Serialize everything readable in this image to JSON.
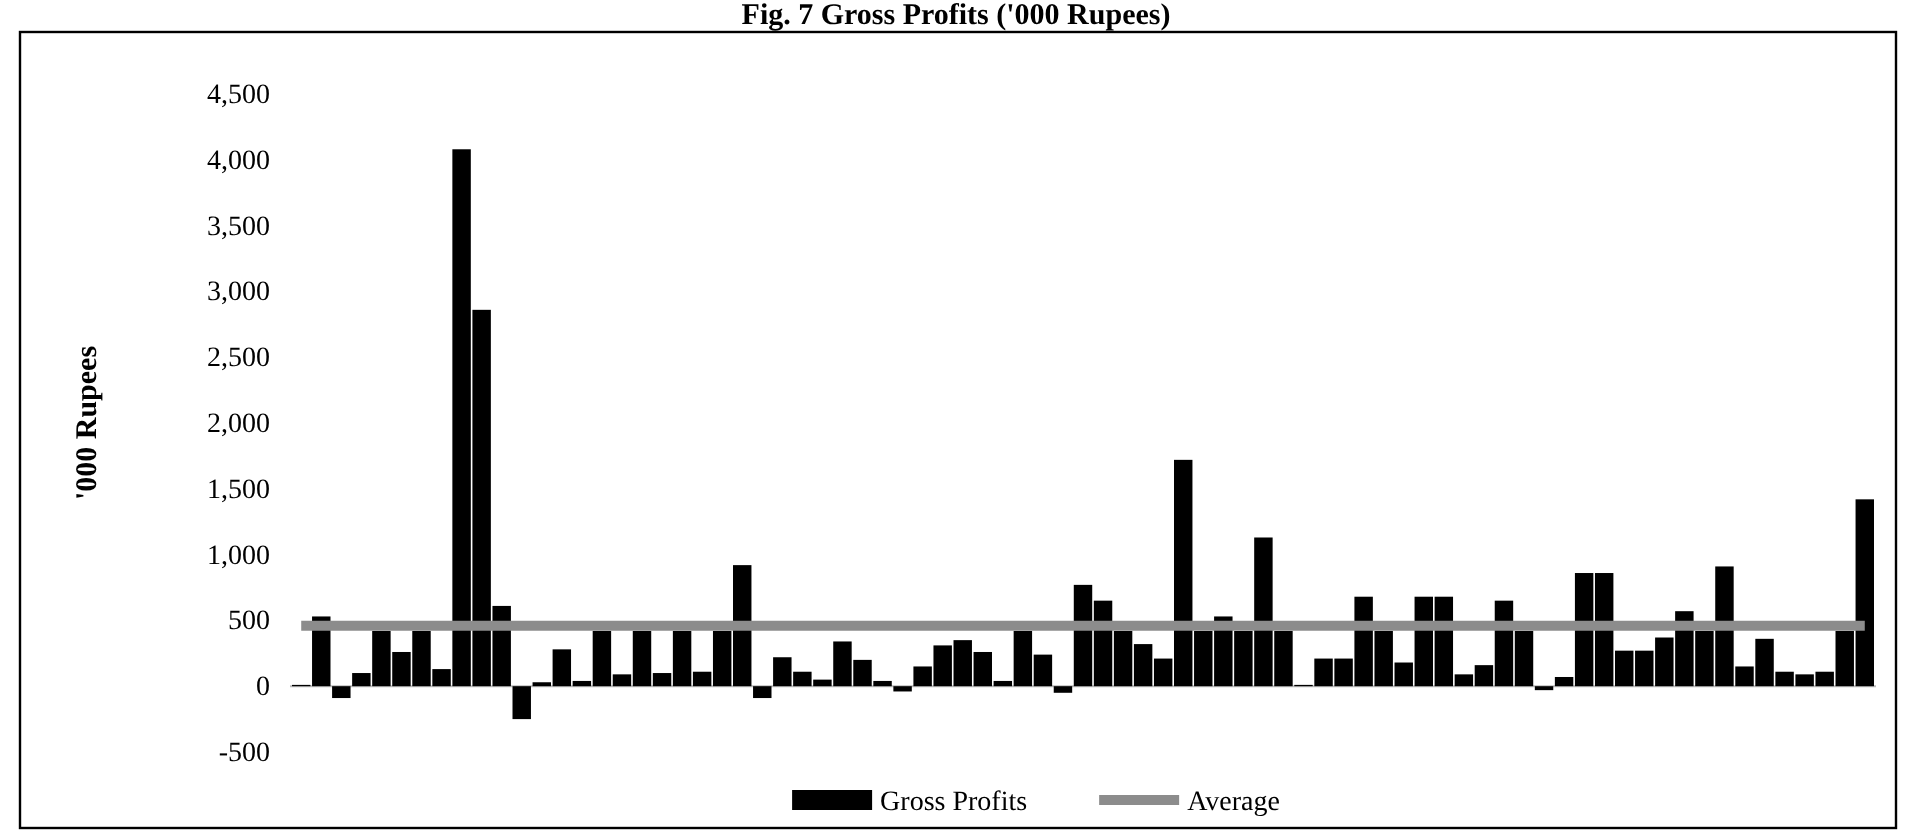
{
  "chart_data": {
    "type": "bar",
    "title": "Fig. 7 Gross Profits ('000 Rupees)",
    "ylabel": "'000 Rupees",
    "categories": [
      null,
      null,
      null,
      null,
      null,
      null,
      null,
      null,
      null,
      null,
      null,
      null,
      null,
      null,
      null,
      null,
      null,
      null,
      null,
      null,
      null,
      null,
      null,
      null,
      null,
      null,
      null,
      null,
      null,
      null,
      null,
      null,
      null,
      null,
      null,
      null,
      null,
      null,
      null,
      null,
      null,
      null,
      null,
      null,
      null,
      null,
      null,
      null,
      null,
      null,
      null,
      null,
      null,
      null,
      null,
      null,
      null,
      null,
      null,
      null,
      null,
      null,
      null,
      null,
      null,
      null,
      null,
      null,
      null,
      null,
      null,
      null,
      null,
      null,
      null,
      null,
      null,
      null,
      null
    ],
    "series": [
      {
        "name": "Gross Profits",
        "color": "#000000",
        "values": [
          10,
          530,
          -90,
          100,
          420,
          260,
          420,
          130,
          4080,
          2860,
          610,
          -250,
          30,
          280,
          40,
          420,
          90,
          420,
          100,
          420,
          110,
          420,
          920,
          -90,
          220,
          110,
          50,
          340,
          200,
          40,
          -40,
          150,
          310,
          350,
          260,
          40,
          420,
          240,
          -50,
          770,
          650,
          420,
          320,
          210,
          1720,
          420,
          530,
          420,
          1130,
          420,
          10,
          210,
          210,
          680,
          420,
          180,
          680,
          680,
          90,
          160,
          650,
          420,
          -30,
          70,
          860,
          860,
          270,
          270,
          370,
          570,
          420,
          910,
          150,
          360,
          110,
          90,
          110,
          420,
          1420
        ]
      },
      {
        "name": "Average",
        "type": "line",
        "color": "#8c8c8c",
        "values": [
          460,
          460,
          460,
          460,
          460,
          460,
          460,
          460,
          460,
          460,
          460,
          460,
          460,
          460,
          460,
          460,
          460,
          460,
          460,
          460,
          460,
          460,
          460,
          460,
          460,
          460,
          460,
          460,
          460,
          460,
          460,
          460,
          460,
          460,
          460,
          460,
          460,
          460,
          460,
          460,
          460,
          460,
          460,
          460,
          460,
          460,
          460,
          460,
          460,
          460,
          460,
          460,
          460,
          460,
          460,
          460,
          460,
          460,
          460,
          460,
          460,
          460,
          460,
          460,
          460,
          460,
          460,
          460,
          460,
          460,
          460,
          460,
          460,
          460,
          460,
          460,
          460,
          460,
          460
        ]
      }
    ],
    "ylim": [
      -500,
      4500
    ],
    "yticks": [
      {
        "value": -500,
        "label": "-500"
      },
      0,
      {
        "value": 500,
        "label": "500"
      },
      {
        "value": 1000,
        "label": "1,000"
      },
      {
        "value": 1500,
        "label": "1,500"
      },
      {
        "value": 2000,
        "label": "2,000"
      },
      {
        "value": 2500,
        "label": "2,500"
      },
      {
        "value": 3000,
        "label": "3,000"
      },
      {
        "value": 3500,
        "label": "3,500"
      },
      {
        "value": 4000,
        "label": "4,000"
      },
      {
        "value": 4500,
        "label": "4,500"
      }
    ],
    "legend": "bottom",
    "line_style": "solid",
    "marker": "none"
  }
}
